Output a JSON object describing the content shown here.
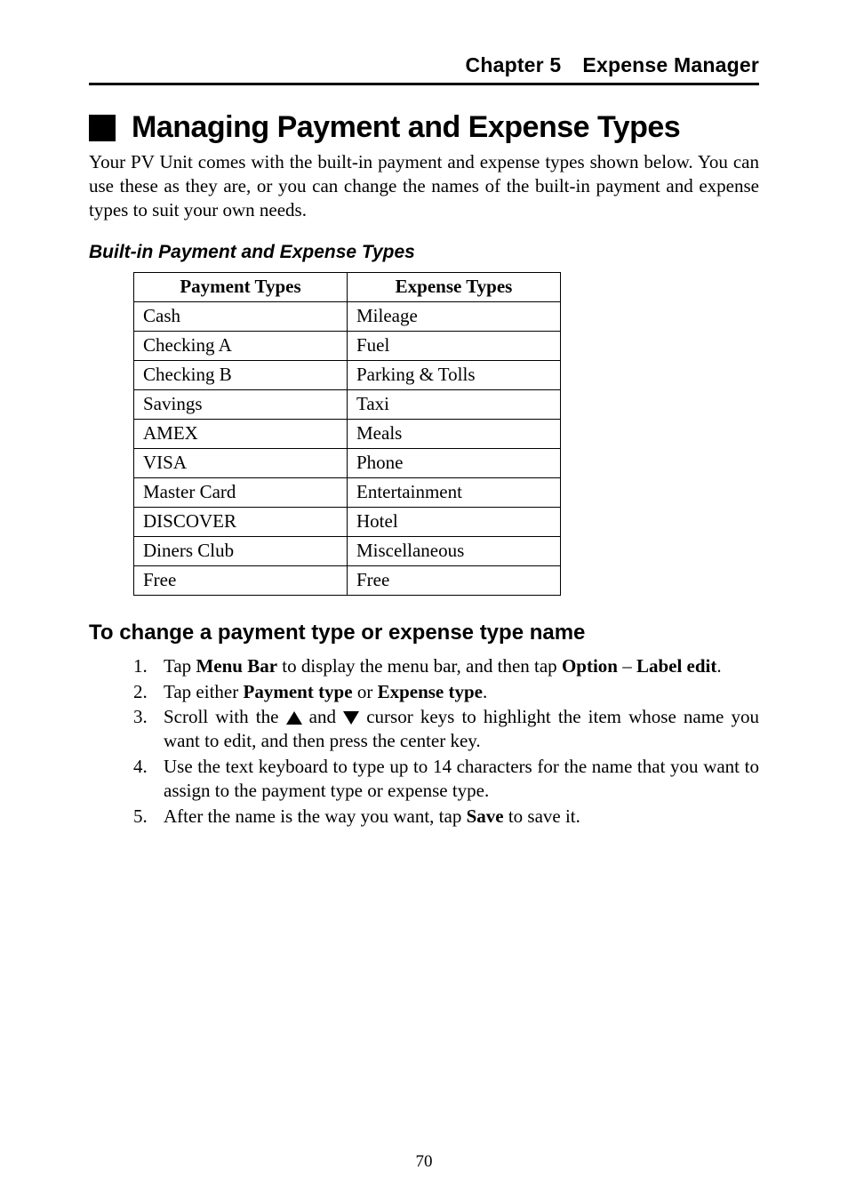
{
  "header": {
    "chapter": "Chapter 5",
    "title": "Expense Manager"
  },
  "h1": "Managing Payment and Expense Types",
  "intro": "Your PV Unit comes with the built-in payment and expense types shown below. You can use these as they are, or you can change the names of the built-in payment and expense types to suit your own needs.",
  "table_caption": "Built-in Payment and Expense Types",
  "table": {
    "columns": [
      "Payment Types",
      "Expense Types"
    ],
    "rows": [
      [
        "Cash",
        "Mileage"
      ],
      [
        "Checking A",
        "Fuel"
      ],
      [
        "Checking B",
        "Parking & Tolls"
      ],
      [
        "Savings",
        "Taxi"
      ],
      [
        "AMEX",
        "Meals"
      ],
      [
        "VISA",
        "Phone"
      ],
      [
        "Master Card",
        "Entertainment"
      ],
      [
        "DISCOVER",
        "Hotel"
      ],
      [
        "Diners Club",
        "Miscellaneous"
      ],
      [
        "Free",
        "Free"
      ]
    ]
  },
  "h2": "To change a payment type or expense type name",
  "steps": {
    "s1": {
      "a": "Tap ",
      "b": "Menu Bar",
      "c": " to display the menu bar, and then tap ",
      "d": "Option",
      "e": " – ",
      "f": "Label edit",
      "g": "."
    },
    "s2": {
      "a": "Tap either ",
      "b": "Payment type",
      "c": " or ",
      "d": "Expense type",
      "e": "."
    },
    "s3": {
      "a": "Scroll with the ",
      "b": " and ",
      "c": " cursor keys to highlight the item whose name you want to edit, and then press the center key."
    },
    "s4": "Use the text keyboard to type up to 14 characters for the name that you want to assign to the payment type or expense type.",
    "s5": {
      "a": "After the name is the way you want, tap ",
      "b": "Save",
      "c": " to save it."
    }
  },
  "page_number": "70"
}
